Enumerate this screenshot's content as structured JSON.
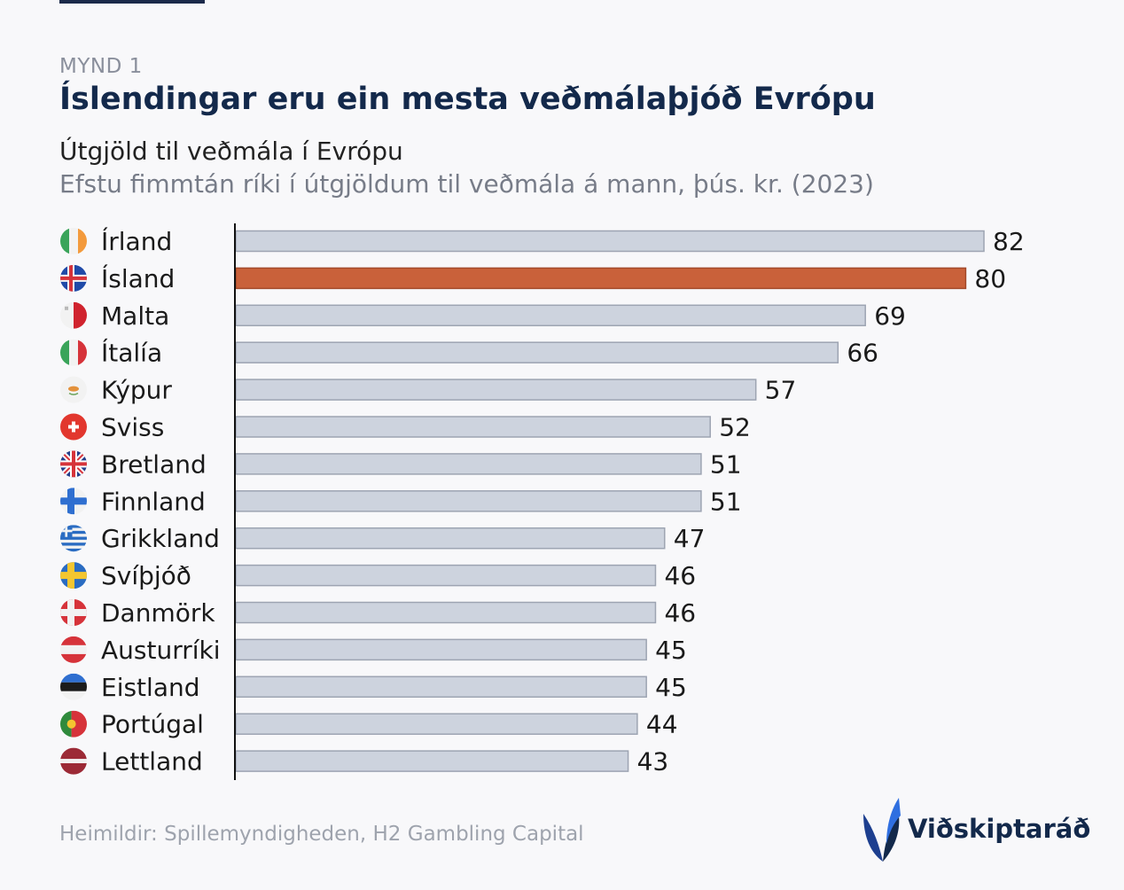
{
  "header": {
    "figure_label": "MYND 1",
    "title": "Íslendingar eru ein mesta veðmálaþjóð Evrópu",
    "subtitle": "Útgjöld til veðmála í Evrópu",
    "description": "Efstu fimmtán ríki í útgjöldum til veðmála á mann, þús. kr. (2023)"
  },
  "colors": {
    "bar_default": "#cdd3de",
    "bar_highlight": "#c9613a",
    "bar_outline": "#9da4b2",
    "axis": "#111111",
    "title": "#13294b"
  },
  "chart_data": {
    "type": "bar",
    "orientation": "horizontal",
    "categories": [
      "Írland",
      "Ísland",
      "Malta",
      "Ítalía",
      "Kýpur",
      "Sviss",
      "Bretland",
      "Finnland",
      "Grikkland",
      "Svíþjóð",
      "Danmörk",
      "Austurríki",
      "Eistland",
      "Portúgal",
      "Lettland"
    ],
    "values": [
      82,
      80,
      69,
      66,
      57,
      52,
      51,
      51,
      47,
      46,
      46,
      45,
      45,
      44,
      43
    ],
    "highlight": "Ísland",
    "xlim": [
      0,
      82
    ],
    "flags": [
      "ireland-flag-icon",
      "iceland-flag-icon",
      "malta-flag-icon",
      "italy-flag-icon",
      "cyprus-flag-icon",
      "switzerland-flag-icon",
      "uk-flag-icon",
      "finland-flag-icon",
      "greece-flag-icon",
      "sweden-flag-icon",
      "denmark-flag-icon",
      "austria-flag-icon",
      "estonia-flag-icon",
      "portugal-flag-icon",
      "latvia-flag-icon"
    ],
    "grid": false,
    "legend": "none"
  },
  "footer": {
    "source": "Heimildir: Spillemyndigheden, H2 Gambling Capital",
    "brand": "Viðskiptaráð"
  }
}
